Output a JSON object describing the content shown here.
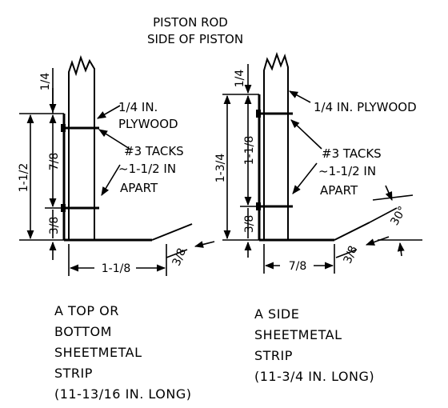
{
  "header": {
    "line1": "PISTON ROD",
    "line2": "SIDE OF PISTON"
  },
  "left": {
    "plywood_line1": "1/4 IN.",
    "plywood_line2": "PLYWOOD",
    "tacks_line1": "#3 TACKS",
    "tacks_line2": "~1-1/2 IN",
    "tacks_line3": "APART",
    "dim_top": "1/4",
    "dim_total": "1-1/2",
    "dim_middle": "7/8",
    "dim_bottom": "3/8",
    "dim_width": "1-1/8",
    "dim_lip": "3/8",
    "caption": [
      "A TOP OR",
      "BOTTOM",
      "SHEETMETAL",
      "STRIP",
      "(11-13/16 IN. LONG)"
    ]
  },
  "right": {
    "plywood_label": "1/4 IN. PLYWOOD",
    "tacks_line1": "#3 TACKS",
    "tacks_line2": "~1-1/2 IN",
    "tacks_line3": "APART",
    "dim_top": "1/4",
    "dim_total": "1-3/4",
    "dim_middle": "1-1/8",
    "dim_bottom": "3/8",
    "dim_width": "7/8",
    "dim_lip": "3/8",
    "angle": "30°",
    "caption": [
      "A SIDE",
      "SHEETMETAL",
      "STRIP",
      "(11-3/4 IN. LONG)"
    ]
  }
}
